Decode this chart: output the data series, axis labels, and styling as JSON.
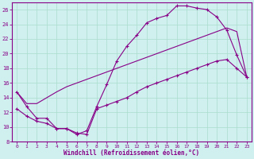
{
  "xlabel": "Windchill (Refroidissement éolien,°C)",
  "xlim": [
    -0.5,
    23.5
  ],
  "ylim": [
    8,
    27
  ],
  "yticks": [
    8,
    10,
    12,
    14,
    16,
    18,
    20,
    22,
    24,
    26
  ],
  "xticks": [
    0,
    1,
    2,
    3,
    4,
    5,
    6,
    7,
    8,
    9,
    10,
    11,
    12,
    13,
    14,
    15,
    16,
    17,
    18,
    19,
    20,
    21,
    22,
    23
  ],
  "bg_color": "#cff0ee",
  "line_color": "#880088",
  "grid_color": "#aaddcc",
  "line1_x": [
    0,
    1,
    2,
    3,
    4,
    5,
    6,
    7,
    8,
    9,
    10,
    11,
    12,
    13,
    14,
    15,
    16,
    17,
    18,
    19,
    20,
    21,
    22,
    23
  ],
  "line1_y": [
    14.8,
    12.8,
    11.2,
    11.2,
    9.8,
    9.8,
    9.0,
    9.5,
    12.8,
    15.8,
    19.0,
    21.0,
    22.5,
    24.2,
    24.8,
    25.2,
    26.5,
    26.5,
    26.2,
    26.0,
    25.0,
    23.2,
    19.8,
    16.8
  ],
  "line2_x": [
    0,
    1,
    2,
    3,
    4,
    5,
    6,
    7,
    8,
    9,
    10,
    11,
    12,
    13,
    14,
    15,
    16,
    17,
    18,
    19,
    20,
    21,
    22,
    23
  ],
  "line2_y": [
    12.5,
    11.5,
    10.8,
    10.5,
    9.8,
    9.8,
    9.2,
    9.0,
    12.5,
    13.0,
    13.5,
    14.0,
    14.8,
    15.5,
    16.0,
    16.5,
    17.0,
    17.5,
    18.0,
    18.5,
    19.0,
    19.2,
    18.0,
    16.8
  ],
  "line3_x": [
    0,
    1,
    2,
    3,
    4,
    5,
    6,
    7,
    8,
    9,
    10,
    11,
    12,
    13,
    14,
    15,
    16,
    17,
    18,
    19,
    20,
    21,
    22,
    23
  ],
  "line3_y": [
    14.8,
    13.2,
    13.2,
    14.0,
    14.8,
    15.5,
    16.0,
    16.5,
    17.0,
    17.5,
    18.0,
    18.5,
    19.0,
    19.5,
    20.0,
    20.5,
    21.0,
    21.5,
    22.0,
    22.5,
    23.0,
    23.5,
    23.0,
    16.8
  ]
}
